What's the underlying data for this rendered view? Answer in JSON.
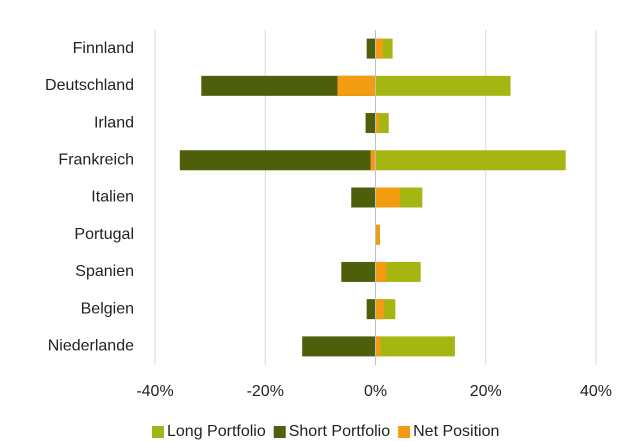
{
  "chart_data": {
    "type": "bar",
    "orientation": "horizontal",
    "overlap": true,
    "categories": [
      "Finnland",
      "Deutschland",
      "Irland",
      "Frankreich",
      "Italien",
      "Portugal",
      "Spanien",
      "Belgien",
      "Niederlande"
    ],
    "series": [
      {
        "name": "Long Portfolio",
        "color": "#a5b613",
        "values": [
          3.1,
          24.5,
          2.4,
          34.5,
          8.5,
          0.8,
          8.2,
          3.6,
          14.4
        ]
      },
      {
        "name": "Short Portfolio",
        "color": "#4d5f0a",
        "values": [
          -1.6,
          -31.6,
          -1.8,
          -35.5,
          -4.4,
          0,
          -6.2,
          -1.6,
          -13.3
        ]
      },
      {
        "name": "Net Position",
        "color": "#f39c12",
        "values": [
          1.3,
          -6.9,
          0.6,
          -0.9,
          4.4,
          0.8,
          2.0,
          1.5,
          0.9
        ]
      }
    ],
    "xlim": [
      -40,
      40
    ],
    "xticks": [
      {
        "value": -40,
        "label": "-40%"
      },
      {
        "value": -20,
        "label": "-20%"
      },
      {
        "value": 0,
        "label": "0%"
      },
      {
        "value": 20,
        "label": "20%"
      },
      {
        "value": 40,
        "label": "40%"
      }
    ],
    "grid": true,
    "legend": "bottom"
  }
}
